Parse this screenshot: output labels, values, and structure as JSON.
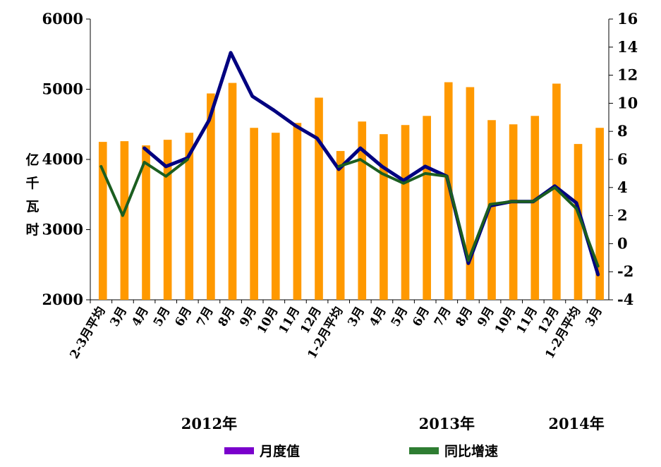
{
  "chart_data": {
    "type": "bar",
    "ylabel": "亿千瓦时",
    "categories": [
      "2-3月平均",
      "3月",
      "4月",
      "5月",
      "6月",
      "7月",
      "8月",
      "9月",
      "10月",
      "11月",
      "12月",
      "1-2月平均",
      "3月",
      "4月",
      "5月",
      "6月",
      "7月",
      "8月",
      "9月",
      "10月",
      "11月",
      "12月",
      "1-2月平均",
      "3月"
    ],
    "year_labels": [
      "2012年",
      "2013年",
      "2014年"
    ],
    "left_axis": {
      "ylim": [
        2000,
        6000
      ],
      "ticks": [
        "2000",
        "3000",
        "4000",
        "5000",
        "6000"
      ]
    },
    "right_axis": {
      "ylim": [
        -4,
        16
      ],
      "ticks": [
        "-4",
        "-2",
        "0",
        "2",
        "4",
        "6",
        "8",
        "10",
        "12",
        "14",
        "16"
      ]
    },
    "series": [
      {
        "type": "bar",
        "axis": "left",
        "color": "#FF9900",
        "values": [
          4250,
          4260,
          4200,
          4280,
          4380,
          4940,
          5090,
          4450,
          4380,
          4520,
          4880,
          4120,
          4540,
          4360,
          4490,
          4620,
          5100,
          5030,
          4560,
          4500,
          4620,
          5080,
          4220,
          4450
        ]
      },
      {
        "type": "line",
        "axis": "right",
        "color": "#000080",
        "values": [
          5.8,
          null,
          6.8,
          5.5,
          6.1,
          8.8,
          13.6,
          10.5,
          9.5,
          8.4,
          7.5,
          5.3,
          6.8,
          5.5,
          4.5,
          5.5,
          4.8,
          -1.4,
          2.7,
          3.0,
          3.0,
          4.1,
          2.9,
          -2.2
        ]
      },
      {
        "type": "line",
        "axis": "right",
        "color": "#1B5E20",
        "values": [
          5.5,
          2.0,
          5.8,
          4.8,
          6.0,
          null,
          null,
          null,
          null,
          null,
          null,
          5.5,
          6.0,
          5.0,
          4.3,
          5.0,
          4.8,
          -1.2,
          2.8,
          3.0,
          3.0,
          4.0,
          2.5,
          -1.6
        ]
      }
    ],
    "legend": {
      "placement": "bottom",
      "entries": [
        {
          "label": "月度值",
          "color": "#7A00CC"
        },
        {
          "label": "同比增速",
          "color": "#2E7D32"
        }
      ]
    }
  }
}
